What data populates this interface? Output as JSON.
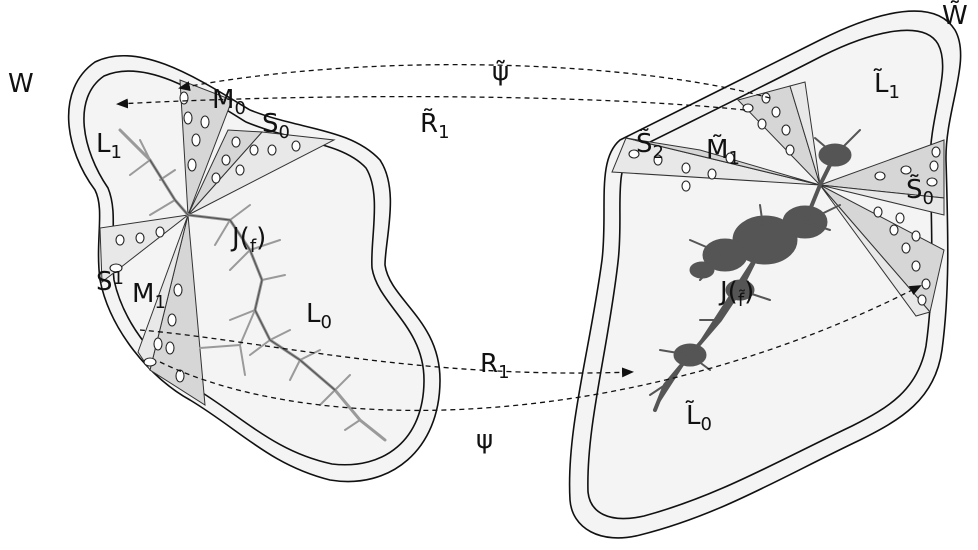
{
  "labels": {
    "W": "W",
    "W_tilde": "W̃",
    "psi_tilde": "ψ̃",
    "R1_tilde_main": "R̃",
    "R1_tilde_sub": "1",
    "M0_main": "M",
    "M0_sub": "0",
    "S0_main": "S",
    "S0_sub": "0",
    "L1_main": "L",
    "L1_sub": "1",
    "Jf_main": "J(",
    "Jf_sub": "f",
    "Jf_close": ")",
    "S1_main": "S",
    "S1_sub": "1",
    "M1_main": "M",
    "M1_sub": "1",
    "L0_main": "L",
    "L0_sub": "0",
    "R1_main": "R",
    "R1_sub": "1",
    "psi": "ψ",
    "S2_tilde_main": "S̃",
    "S2_tilde_sub": "2",
    "M1_tilde_main": "M̃",
    "M1_tilde_sub": "1",
    "L1_tilde_main": "L̃",
    "L1_tilde_sub": "1",
    "S0_tilde_main": "S̃",
    "S0_tilde_sub": "0",
    "Jft_main": "J(",
    "Jft_sub": "f̃",
    "Jft_close": ")",
    "L0_tilde_main": "L̃",
    "L0_tilde_sub": "0"
  }
}
